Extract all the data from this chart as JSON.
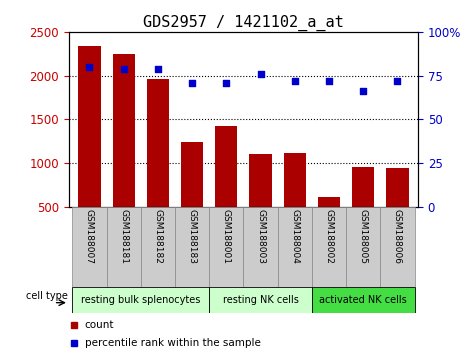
{
  "title": "GDS2957 / 1421102_a_at",
  "samples": [
    "GSM188007",
    "GSM188181",
    "GSM188182",
    "GSM188183",
    "GSM188001",
    "GSM188003",
    "GSM188004",
    "GSM188002",
    "GSM188005",
    "GSM188006"
  ],
  "counts": [
    2340,
    2250,
    1960,
    1240,
    1430,
    1110,
    1115,
    615,
    960,
    950
  ],
  "percentiles": [
    80,
    79,
    79,
    71,
    71,
    76,
    72,
    72,
    66,
    72
  ],
  "ylim_left": [
    500,
    2500
  ],
  "ylim_right": [
    0,
    100
  ],
  "yticks_left": [
    500,
    1000,
    1500,
    2000,
    2500
  ],
  "yticks_right": [
    0,
    25,
    50,
    75,
    100
  ],
  "cell_groups": [
    {
      "label": "resting bulk splenocytes",
      "start": 0,
      "end": 4,
      "color": "#ccffcc"
    },
    {
      "label": "resting NK cells",
      "start": 4,
      "end": 7,
      "color": "#ccffcc"
    },
    {
      "label": "activated NK cells",
      "start": 7,
      "end": 10,
      "color": "#44dd44"
    }
  ],
  "bar_color": "#aa0000",
  "dot_color": "#0000cc",
  "tick_label_bg": "#cccccc",
  "grid_color": "#000000",
  "title_fontsize": 11,
  "axis_label_color_left": "#cc0000",
  "axis_label_color_right": "#0000cc",
  "group_border_colors": [
    "#aaaaaa",
    "#aaaaaa",
    "#aaaaaa"
  ]
}
